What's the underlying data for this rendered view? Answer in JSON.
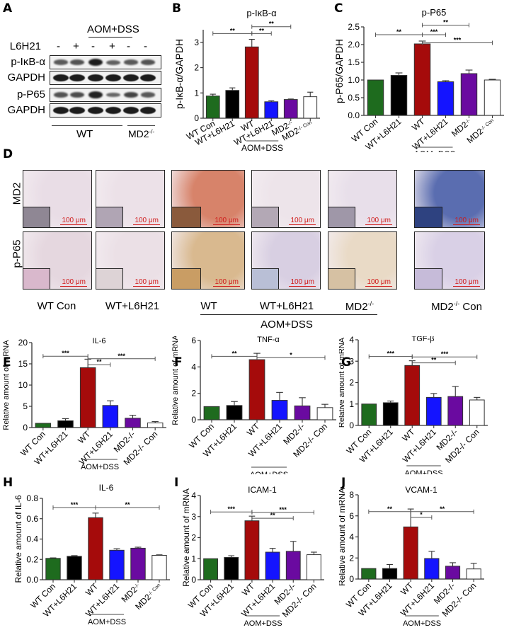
{
  "panel_labels": {
    "A": "A",
    "B": "B",
    "C": "C",
    "D": "D",
    "E": "E",
    "F": "F",
    "G": "G",
    "H": "H",
    "I": "I",
    "J": "J"
  },
  "colors": {
    "green": "#1e6b1e",
    "black": "#000000",
    "red": "#a50b0b",
    "blue": "#1414ff",
    "purple": "#6a0aa0",
    "white": "#ffffff"
  },
  "western_blot": {
    "treatment_header": "AOM+DSS",
    "row_label_l6h21": "L6H21",
    "lane_signs": [
      "-",
      "+",
      "-",
      "+",
      "-",
      "-"
    ],
    "rows": [
      {
        "label": "p-IκB-α",
        "intensity": [
          0.55,
          0.6,
          1.0,
          0.5,
          0.55,
          0.6
        ]
      },
      {
        "label": "GAPDH",
        "intensity": [
          1,
          1,
          1,
          1,
          1,
          1
        ]
      },
      {
        "label": "p-P65",
        "intensity": [
          0.6,
          0.65,
          0.95,
          0.45,
          0.7,
          0.55
        ]
      },
      {
        "label": "GAPDH",
        "intensity": [
          1,
          1,
          1,
          1,
          1,
          1
        ]
      }
    ],
    "group_wt": "WT",
    "group_md2": "MD2",
    "group_md2_sup": "-/-"
  },
  "ihc": {
    "row_labels": [
      "MD2",
      "p-P65"
    ],
    "scale_bar": "100 μm",
    "columns": [
      "WT Con",
      "WT+L6H21",
      "WT",
      "WT+L6H21",
      "MD2",
      "MD2 Con"
    ],
    "md2_sup": "-/-",
    "md2_con_text": " Con",
    "group_label": "AOM+DSS",
    "tiles": [
      [
        "#e9dde6",
        "#ece1e8",
        "#d7836a",
        "#ede4ea",
        "#e8dfea",
        "#5a6db0"
      ],
      [
        "#e5d7df",
        "#ebe0e6",
        "#d9b98f",
        "#d8cfe2",
        "#e9dac6",
        "#d9d0e6"
      ]
    ],
    "insets": [
      [
        "#8f8794",
        "#b0a5b4",
        "#8a5a3c",
        "#b3a8b5",
        "#9f97a8",
        "#2e4280"
      ],
      [
        "#d9b8cc",
        "#ddd3d6",
        "#c99d64",
        "#b9bfd6",
        "#d6c1a3",
        "#c6bbd9"
      ]
    ]
  },
  "chart_data": [
    {
      "id": "B",
      "type": "bar",
      "title": "p-IκB-α",
      "ylabel": "p-IκB-α/GAPDH",
      "categories": [
        "WT Con",
        "WT+L6H21",
        "WT",
        "WT+L6H21",
        "MD2",
        "MD2"
      ],
      "category_sups": [
        "",
        "",
        "",
        "",
        "-/-",
        "-/- Con"
      ],
      "values": [
        0.88,
        1.1,
        2.82,
        0.65,
        0.74,
        0.85
      ],
      "errors": [
        0.07,
        0.1,
        0.3,
        0.04,
        0.02,
        0.18
      ],
      "ylim": [
        0,
        3.5
      ],
      "yticks": [
        0,
        1,
        2,
        3
      ],
      "ytick_labels": [
        "0",
        "1",
        "2",
        "3"
      ],
      "group_label": "AOM+DSS",
      "significance": [
        {
          "from": 0,
          "to": 2,
          "label": "**",
          "level": 3.35
        },
        {
          "from": 2,
          "to": 3,
          "label": "**",
          "level": 3.35
        },
        {
          "from": 2,
          "to": 4,
          "label": "**",
          "level": 3.62
        }
      ]
    },
    {
      "id": "C",
      "type": "bar",
      "title": "p-P65",
      "ylabel": "p-P65/GAPDH",
      "categories": [
        "WT Con",
        "WT+L6H21",
        "WT",
        "WT+L6H21",
        "MD2",
        "MD2"
      ],
      "category_sups": [
        "",
        "",
        "",
        "",
        "-/-",
        "-/- Con"
      ],
      "values": [
        1.0,
        1.13,
        2.02,
        0.95,
        1.18,
        1.0
      ],
      "errors": [
        0.0,
        0.07,
        0.08,
        0.03,
        0.1,
        0.02
      ],
      "ylim": [
        0,
        2.5
      ],
      "yticks": [
        0,
        0.5,
        1,
        1.5,
        2,
        2.5
      ],
      "ytick_labels": [
        "0.0",
        "0.5",
        "1.0",
        "1.5",
        "2.0",
        "2.5"
      ],
      "group_label": "AOM+DSS",
      "significance": [
        {
          "from": 0,
          "to": 2,
          "label": "**",
          "level": 2.28
        },
        {
          "from": 2,
          "to": 3,
          "label": "***",
          "level": 2.28
        },
        {
          "from": 2,
          "to": 4,
          "label": "**",
          "level": 2.55
        },
        {
          "from": 2,
          "to": 5,
          "label": "***",
          "level": 2.05
        }
      ]
    },
    {
      "id": "E",
      "type": "bar",
      "title": "IL-6",
      "ylabel": "Relative amount of mRNA",
      "categories": [
        "WT Con",
        "WT+L6H21",
        "WT",
        "WT+L6H21",
        "MD2-/-",
        "MD2-/- Con"
      ],
      "category_sups": [
        "",
        "",
        "",
        "",
        "",
        ""
      ],
      "values": [
        1.0,
        1.6,
        14.1,
        5.2,
        2.2,
        1.1
      ],
      "errors": [
        0.0,
        0.5,
        2.0,
        1.1,
        0.7,
        0.3
      ],
      "ylim": [
        0,
        20
      ],
      "yticks": [
        0,
        5,
        10,
        15,
        20
      ],
      "ytick_labels": [
        "0",
        "5",
        "10",
        "15",
        "20"
      ],
      "group_label": "AOM+DSS",
      "significance": [
        {
          "from": 0,
          "to": 2,
          "label": "***",
          "level": 16.8
        },
        {
          "from": 2,
          "to": 3,
          "label": "**",
          "level": 14.8
        },
        {
          "from": 2,
          "to": 5,
          "label": "***",
          "level": 16.2
        }
      ]
    },
    {
      "id": "F",
      "type": "bar",
      "title": "TNF-α",
      "ylabel": "Relative amount of mRNA",
      "categories": [
        "WT Con",
        "WT+L6H21",
        "WT",
        "WT+L6H21",
        "MD2-/-",
        "MD2-/- Con"
      ],
      "category_sups": [
        "",
        "",
        "",
        "",
        "",
        ""
      ],
      "values": [
        1.0,
        1.08,
        4.55,
        1.47,
        1.05,
        0.92
      ],
      "errors": [
        0.0,
        0.3,
        0.48,
        0.6,
        0.62,
        0.25
      ],
      "ylim": [
        0,
        6
      ],
      "yticks": [
        0,
        2,
        4,
        6
      ],
      "ytick_labels": [
        "0",
        "2",
        "4",
        "6"
      ],
      "group_label": "AOM+DSS",
      "significance": [
        {
          "from": 0,
          "to": 2,
          "label": "**",
          "level": 4.8
        },
        {
          "from": 2,
          "to": 5,
          "label": "*",
          "level": 4.7
        }
      ]
    },
    {
      "id": "G",
      "type": "bar",
      "title": "TGF-β",
      "ylabel": "Relative amount of mRNA",
      "categories": [
        "WT Con",
        "WT+L6H21",
        "WT",
        "WT+L6H21",
        "MD2-/-",
        "MD2-/- Con"
      ],
      "category_sups": [
        "",
        "",
        "",
        "",
        "",
        ""
      ],
      "values": [
        1.0,
        1.06,
        2.8,
        1.31,
        1.35,
        1.19
      ],
      "errors": [
        0.0,
        0.08,
        0.22,
        0.18,
        0.47,
        0.12
      ],
      "ylim": [
        0,
        4
      ],
      "yticks": [
        0,
        1,
        2,
        3,
        4
      ],
      "ytick_labels": [
        "0",
        "1",
        "2",
        "3",
        "4"
      ],
      "group_label": "AOM+DSS",
      "significance": [
        {
          "from": 0,
          "to": 2,
          "label": "***",
          "level": 3.22
        },
        {
          "from": 2,
          "to": 4,
          "label": "**",
          "level": 2.92
        },
        {
          "from": 2,
          "to": 5,
          "label": "***",
          "level": 3.2
        }
      ]
    },
    {
      "id": "H",
      "type": "bar",
      "title": "IL-6",
      "ylabel": "Relative amount of IL-6",
      "categories": [
        "WT Con",
        "WT+L6H21",
        "WT",
        "WT+L6H21",
        "MD2",
        "MD2"
      ],
      "category_sups": [
        "",
        "",
        "",
        "",
        "-/-",
        "-/- Con"
      ],
      "values": [
        0.21,
        0.23,
        0.61,
        0.29,
        0.31,
        0.24
      ],
      "errors": [
        0.005,
        0.007,
        0.045,
        0.015,
        0.01,
        0.005
      ],
      "ylim": [
        0,
        0.8
      ],
      "yticks": [
        0,
        0.2,
        0.4,
        0.6,
        0.8
      ],
      "ytick_labels": [
        "0.0",
        "0.2",
        "0.4",
        "0.6",
        "0.8"
      ],
      "group_label": "AOM+DSS",
      "significance": [
        {
          "from": 0,
          "to": 2,
          "label": "***",
          "level": 0.71
        },
        {
          "from": 2,
          "to": 5,
          "label": "**",
          "level": 0.71
        }
      ]
    },
    {
      "id": "I",
      "type": "bar",
      "title": "ICAM-1",
      "ylabel": "Relative amount of mRNA",
      "categories": [
        "WT Con",
        "WT+L6H21",
        "WT",
        "WT+L6H21",
        "MD2-/-",
        "MD2-/- Con"
      ],
      "category_sups": [
        "",
        "",
        "",
        "",
        "",
        ""
      ],
      "values": [
        1.0,
        1.06,
        2.8,
        1.31,
        1.35,
        1.19
      ],
      "errors": [
        0.0,
        0.08,
        0.22,
        0.18,
        0.47,
        0.12
      ],
      "ylim": [
        0,
        4
      ],
      "yticks": [
        0,
        1,
        2,
        3,
        4
      ],
      "ytick_labels": [
        "0",
        "1",
        "2",
        "3",
        "4"
      ],
      "group_label": "AOM+DSS",
      "significance": [
        {
          "from": 0,
          "to": 2,
          "label": "***",
          "level": 3.22
        },
        {
          "from": 2,
          "to": 4,
          "label": "**",
          "level": 2.92
        },
        {
          "from": 2,
          "to": 5,
          "label": "***",
          "level": 3.2
        }
      ]
    },
    {
      "id": "J",
      "type": "bar",
      "title": "VCAM-1",
      "ylabel": "Relative amount of mRNA",
      "categories": [
        "WT Con",
        "WT+L6H21",
        "WT",
        "WT+L6H21",
        "MD2-/-",
        "MD2-/- Con"
      ],
      "category_sups": [
        "",
        "",
        "",
        "",
        "",
        ""
      ],
      "values": [
        1.0,
        1.0,
        4.95,
        1.95,
        1.22,
        0.96
      ],
      "errors": [
        0.0,
        0.38,
        1.7,
        0.68,
        0.33,
        0.53
      ],
      "ylim": [
        0,
        8
      ],
      "yticks": [
        0,
        2,
        4,
        6,
        8
      ],
      "ytick_labels": [
        "0",
        "2",
        "4",
        "6",
        "8"
      ],
      "group_label": "AOM+DSS",
      "significance": [
        {
          "from": 0,
          "to": 2,
          "label": "**",
          "level": 6.4
        },
        {
          "from": 2,
          "to": 3,
          "label": "*",
          "level": 5.85
        },
        {
          "from": 2,
          "to": 5,
          "label": "**",
          "level": 6.4
        }
      ]
    }
  ]
}
